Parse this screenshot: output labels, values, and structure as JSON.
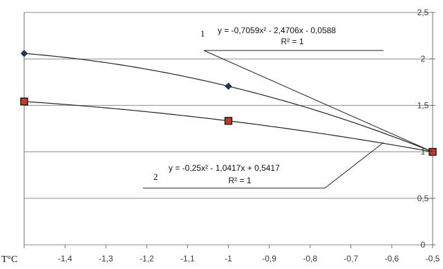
{
  "chart_data": {
    "type": "scatter",
    "xlabel": "T°C",
    "ylabel": "",
    "xlim": [
      -1.5,
      -0.5
    ],
    "ylim": [
      0,
      2.5
    ],
    "grid": true,
    "x_ticks": [
      "-1,4",
      "-1,3",
      "-1,2",
      "-1,1",
      "-1",
      "-0,9",
      "-0,8",
      "-0,7",
      "-0,6",
      "-0,5"
    ],
    "x_tick_values": [
      -1.4,
      -1.3,
      -1.2,
      -1.1,
      -1.0,
      -0.9,
      -0.8,
      -0.7,
      -0.6,
      -0.5
    ],
    "y_ticks": [
      "0",
      "0,5",
      "1",
      "1,5",
      "2",
      "2,5"
    ],
    "y_tick_values": [
      0,
      0.5,
      1,
      1.5,
      2,
      2.5
    ],
    "series": [
      {
        "marker": "diamond",
        "marker_color": "#1f3a5f",
        "x": [
          -1.5,
          -1.0,
          -0.5
        ],
        "y": [
          2.059,
          1.706,
          1.0
        ],
        "trendline": {
          "a": -0.7059,
          "b": -2.4706,
          "c": -0.0588
        },
        "number_label": "1",
        "equation": "y = -0,7059x² - 2,4706x - 0,0588",
        "r2": "R² = 1"
      },
      {
        "marker": "square",
        "marker_color": "#c0392b",
        "x": [
          -1.5,
          -1.0,
          -0.5
        ],
        "y": [
          1.5417,
          1.3333,
          1.0
        ],
        "trendline": {
          "a": -0.25,
          "b": -1.0417,
          "c": 0.5417
        },
        "number_label": "2",
        "equation": "y = -0,25x² - 1,0417x + 0,5417",
        "r2": "R² = 1"
      }
    ]
  }
}
